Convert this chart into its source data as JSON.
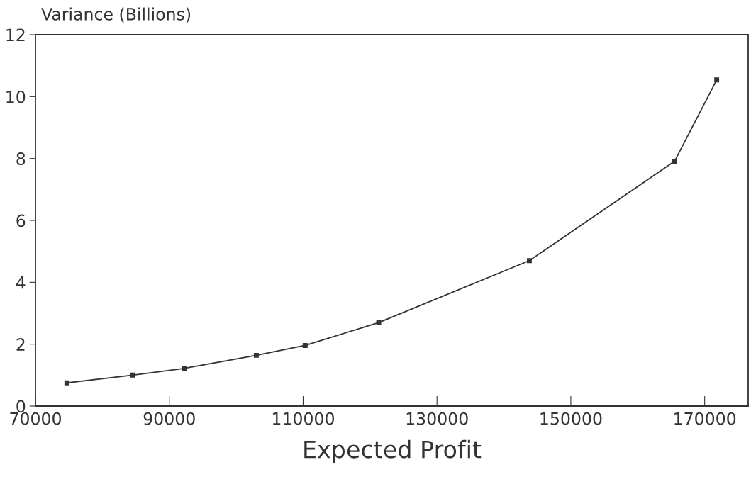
{
  "chart_data": {
    "type": "line",
    "xlabel": "Expected Profit",
    "ylabel": "Variance (Billions)",
    "x": [
      74700,
      84500,
      92300,
      103000,
      110300,
      121300,
      143800,
      165500,
      171800
    ],
    "series": [
      {
        "color": "#333333",
        "values": [
          0.75,
          1.0,
          1.22,
          1.64,
          1.96,
          2.7,
          4.7,
          7.91,
          10.54
        ]
      }
    ],
    "xlim": [
      70000,
      176500
    ],
    "xticks": [
      70000,
      90000,
      110000,
      130000,
      150000,
      170000
    ],
    "ylim": [
      0,
      12
    ],
    "yticks": [
      0,
      2,
      4,
      6,
      8,
      10,
      12
    ],
    "grid": false,
    "legend": false,
    "marker": "square",
    "line_style": "solid"
  }
}
